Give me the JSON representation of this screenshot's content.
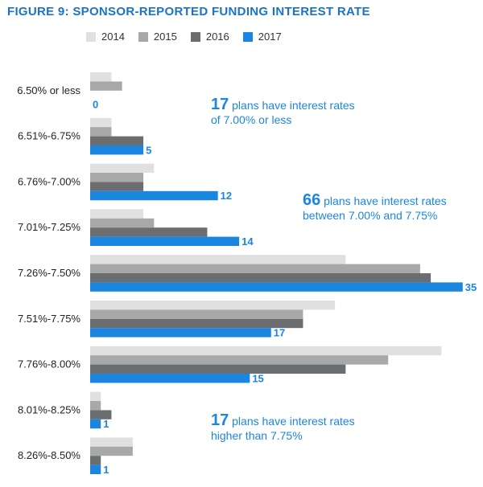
{
  "title": "FIGURE 9: SPONSOR-REPORTED FUNDING INTEREST RATE",
  "colors": {
    "title": "#1a73c7",
    "s2014": "#e0e0e0",
    "s2015": "#a8a8a8",
    "s2016": "#6b6e70",
    "s2017": "#1a86e0",
    "annotation": "#1a86e0"
  },
  "annotations": [
    {
      "number": "17",
      "line1": "plans have interest rates",
      "line2": "of 7.00% or less"
    },
    {
      "number": "66",
      "line1": "plans have interest rates",
      "line2": "between 7.00% and 7.75%"
    },
    {
      "number": "17",
      "line1": "plans have interest rates",
      "line2": "higher than 7.75%"
    }
  ],
  "chart_data": {
    "type": "bar",
    "orientation": "horizontal",
    "legend_position": "top",
    "categories": [
      "6.50% or less",
      "6.51%-6.75%",
      "6.76%-7.00%",
      "7.01%-7.25%",
      "7.26%-7.50%",
      "7.51%-7.75%",
      "7.76%-8.00%",
      "8.01%-8.25%",
      "8.26%-8.50%"
    ],
    "series": [
      {
        "name": "2014",
        "color": "#e0e0e0",
        "values": [
          2,
          2,
          6,
          5,
          24,
          23,
          33,
          1,
          4
        ]
      },
      {
        "name": "2015",
        "color": "#a8a8a8",
        "values": [
          3,
          2,
          5,
          6,
          31,
          20,
          28,
          1,
          4
        ]
      },
      {
        "name": "2016",
        "color": "#6b6e70",
        "values": [
          0,
          5,
          5,
          11,
          32,
          20,
          24,
          2,
          1
        ]
      },
      {
        "name": "2017",
        "color": "#1a86e0",
        "values": [
          0,
          5,
          12,
          14,
          35,
          17,
          15,
          1,
          1
        ]
      }
    ],
    "data_labels_series": "2017",
    "xlim": [
      0,
      36
    ],
    "grid": false
  }
}
